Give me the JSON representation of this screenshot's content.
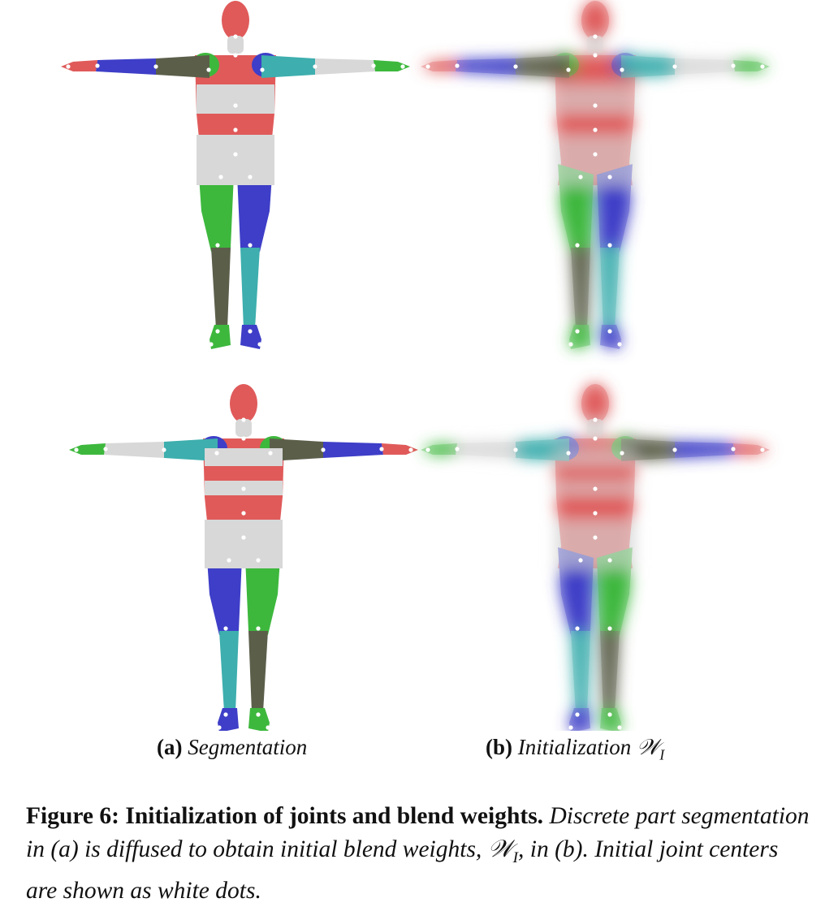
{
  "colors": {
    "red": "#e05a5a",
    "blue": "#3e3ec8",
    "green": "#3db83d",
    "teal": "#3eaeae",
    "dark": "#5b5f4a",
    "white": "#d8d8d8",
    "dot": "#ffffff"
  },
  "views": [
    {
      "name": "front-segmentation",
      "panel": "a",
      "orientation": "front"
    },
    {
      "name": "front-initialization",
      "panel": "b",
      "orientation": "front"
    },
    {
      "name": "back-segmentation",
      "panel": "a",
      "orientation": "back"
    },
    {
      "name": "back-initialization",
      "panel": "b",
      "orientation": "back"
    }
  ],
  "subcaptions": {
    "a": {
      "label": "(a)",
      "text": "Segmentation"
    },
    "b": {
      "label": "(b)",
      "text": "Initialization ",
      "symbol": "𝒲",
      "subscript": "I"
    }
  },
  "caption": {
    "label": "Figure 6:",
    "title": "Initialization of joints and blend weights.",
    "text_1": "Discrete part segmentation in (a) is diffused to obtain initial blend weights,",
    "symbol": "𝒲",
    "subscript": "I",
    "text_2": ", in (b). Initial joint centers are shown as white dots."
  }
}
